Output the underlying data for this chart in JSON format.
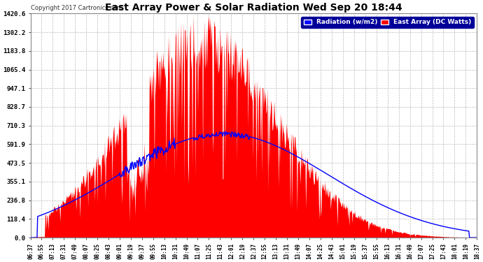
{
  "title": "East Array Power & Solar Radiation Wed Sep 20 18:44",
  "copyright": "Copyright 2017 Cartronics.com",
  "legend_radiation": "Radiation (w/m2)",
  "legend_east_array": "East Array (DC Watts)",
  "yticks": [
    0.0,
    118.4,
    236.8,
    355.1,
    473.5,
    591.9,
    710.3,
    828.7,
    947.1,
    1065.4,
    1183.8,
    1302.2,
    1420.6
  ],
  "ymax": 1420.6,
  "ymin": 0.0,
  "background_color": "#ffffff",
  "plot_bg_color": "#ffffff",
  "grid_color": "#bbbbbb",
  "red_fill_color": "#ff0000",
  "blue_line_color": "#0000ff",
  "title_color": "#000000",
  "xtick_labels": [
    "06:37",
    "06:55",
    "07:13",
    "07:31",
    "07:49",
    "08:07",
    "08:25",
    "08:43",
    "09:01",
    "09:19",
    "09:37",
    "09:55",
    "10:13",
    "10:31",
    "10:49",
    "11:07",
    "11:25",
    "11:43",
    "12:01",
    "12:19",
    "12:37",
    "12:55",
    "13:13",
    "13:31",
    "13:49",
    "14:07",
    "14:25",
    "14:43",
    "15:01",
    "15:19",
    "15:37",
    "15:55",
    "16:13",
    "16:31",
    "16:49",
    "17:07",
    "17:25",
    "17:43",
    "18:01",
    "18:19",
    "18:37"
  ]
}
